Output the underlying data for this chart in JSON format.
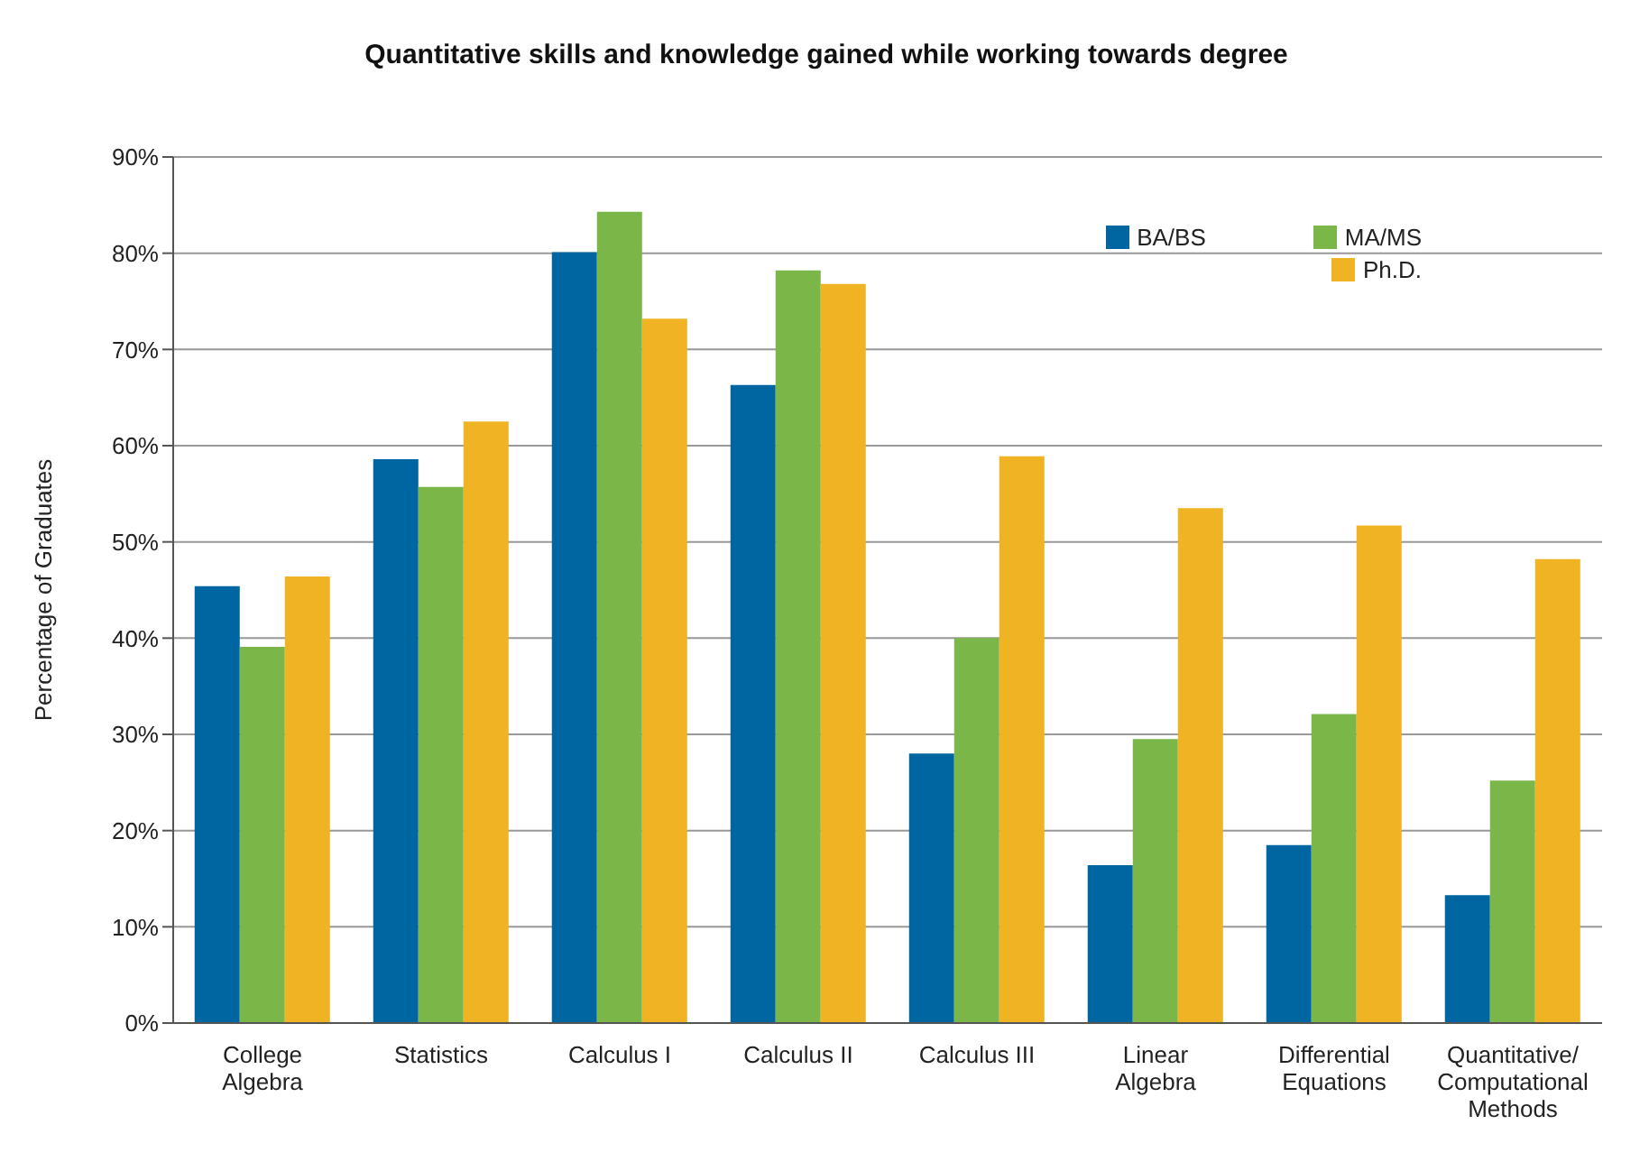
{
  "chart_data": {
    "type": "bar",
    "title": "Quantitative skills and knowledge gained while working towards degree",
    "ylabel": "Percentage of Graduates",
    "categories": [
      "College\nAlgebra",
      "Statistics",
      "Calculus I",
      "Calculus II",
      "Calculus III",
      "Linear\nAlgebra",
      "Differential\nEquations",
      "Quantitative/\nComputational\nMethods"
    ],
    "series": [
      {
        "name": "BA/BS",
        "color": "#0066a1",
        "values": [
          45.4,
          58.6,
          80.1,
          66.3,
          28.0,
          16.4,
          18.5,
          13.3
        ]
      },
      {
        "name": "MA/MS",
        "color": "#7ab648",
        "values": [
          39.1,
          55.7,
          84.3,
          78.2,
          40.0,
          29.5,
          32.1,
          25.2
        ]
      },
      {
        "name": "Ph.D.",
        "color": "#f0b323",
        "values": [
          46.4,
          62.5,
          73.2,
          76.8,
          58.9,
          53.5,
          51.7,
          48.2
        ]
      }
    ],
    "ylim": [
      0,
      90
    ],
    "yticks": [
      {
        "value": 0,
        "label": "0%"
      },
      {
        "value": 10,
        "label": "10%"
      },
      {
        "value": 20,
        "label": "20%"
      },
      {
        "value": 30,
        "label": "30%"
      },
      {
        "value": 40,
        "label": "40%"
      },
      {
        "value": 50,
        "label": "50%"
      },
      {
        "value": 60,
        "label": "60%"
      },
      {
        "value": 70,
        "label": "70%"
      },
      {
        "value": 80,
        "label": "80%"
      },
      {
        "value": 90,
        "label": "90%"
      }
    ],
    "grid": "y",
    "legend": "top right"
  }
}
